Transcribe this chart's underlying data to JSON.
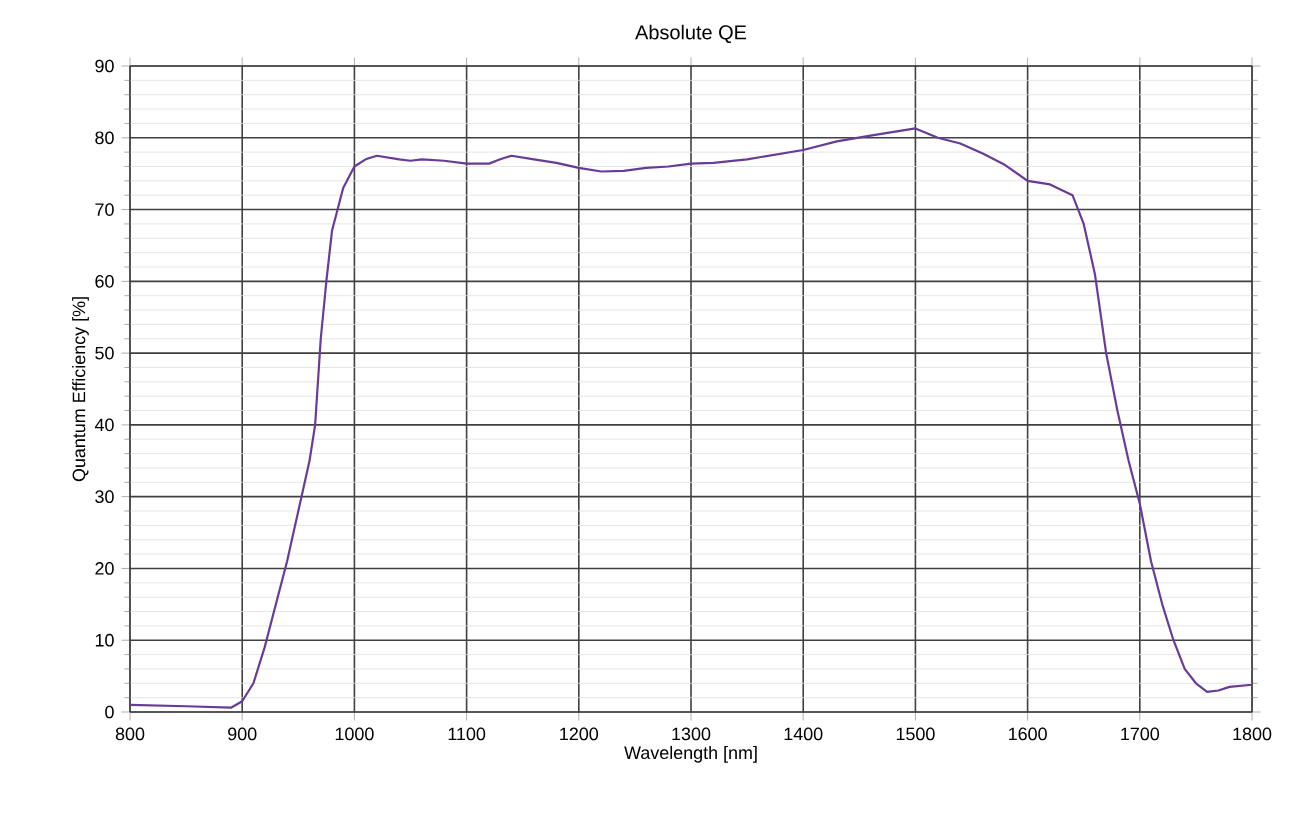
{
  "chart_data": {
    "type": "line",
    "title": "Absolute QE",
    "xlabel": "Wavelength [nm]",
    "ylabel": "Quantum Efficiency [%]",
    "xlim": [
      800,
      1800
    ],
    "ylim": [
      0,
      90
    ],
    "xticks": [
      800,
      900,
      1000,
      1100,
      1200,
      1300,
      1400,
      1500,
      1600,
      1700,
      1800
    ],
    "yticks": [
      0,
      10,
      20,
      30,
      40,
      50,
      60,
      70,
      80,
      90
    ],
    "grid": true,
    "marker": "none",
    "line_style": "solid",
    "series": [
      {
        "color": "#6a3a98",
        "x": [
          800,
          850,
          890,
          900,
          910,
          920,
          930,
          940,
          950,
          960,
          965,
          970,
          975,
          980,
          990,
          1000,
          1010,
          1020,
          1040,
          1050,
          1060,
          1080,
          1100,
          1120,
          1130,
          1140,
          1160,
          1180,
          1200,
          1220,
          1240,
          1260,
          1280,
          1300,
          1320,
          1350,
          1400,
          1430,
          1460,
          1500,
          1520,
          1540,
          1560,
          1580,
          1600,
          1620,
          1640,
          1650,
          1660,
          1670,
          1680,
          1690,
          1700,
          1710,
          1720,
          1730,
          1740,
          1750,
          1760,
          1770,
          1780,
          1800
        ],
        "values": [
          1,
          0.8,
          0.6,
          1.5,
          4,
          9,
          15,
          21,
          28,
          35,
          40,
          52,
          60,
          67,
          73,
          76,
          77,
          77.5,
          77,
          76.8,
          77,
          76.8,
          76.4,
          76.4,
          77,
          77.5,
          77,
          76.5,
          75.8,
          75.3,
          75.4,
          75.8,
          76,
          76.4,
          76.5,
          77,
          78.3,
          79.5,
          80.3,
          81.3,
          80,
          79.2,
          77.8,
          76.2,
          74,
          73.5,
          72,
          68,
          61,
          50,
          42,
          35,
          29,
          21,
          15,
          10,
          6,
          4,
          2.8,
          3,
          3.5,
          3.8
        ]
      }
    ]
  }
}
